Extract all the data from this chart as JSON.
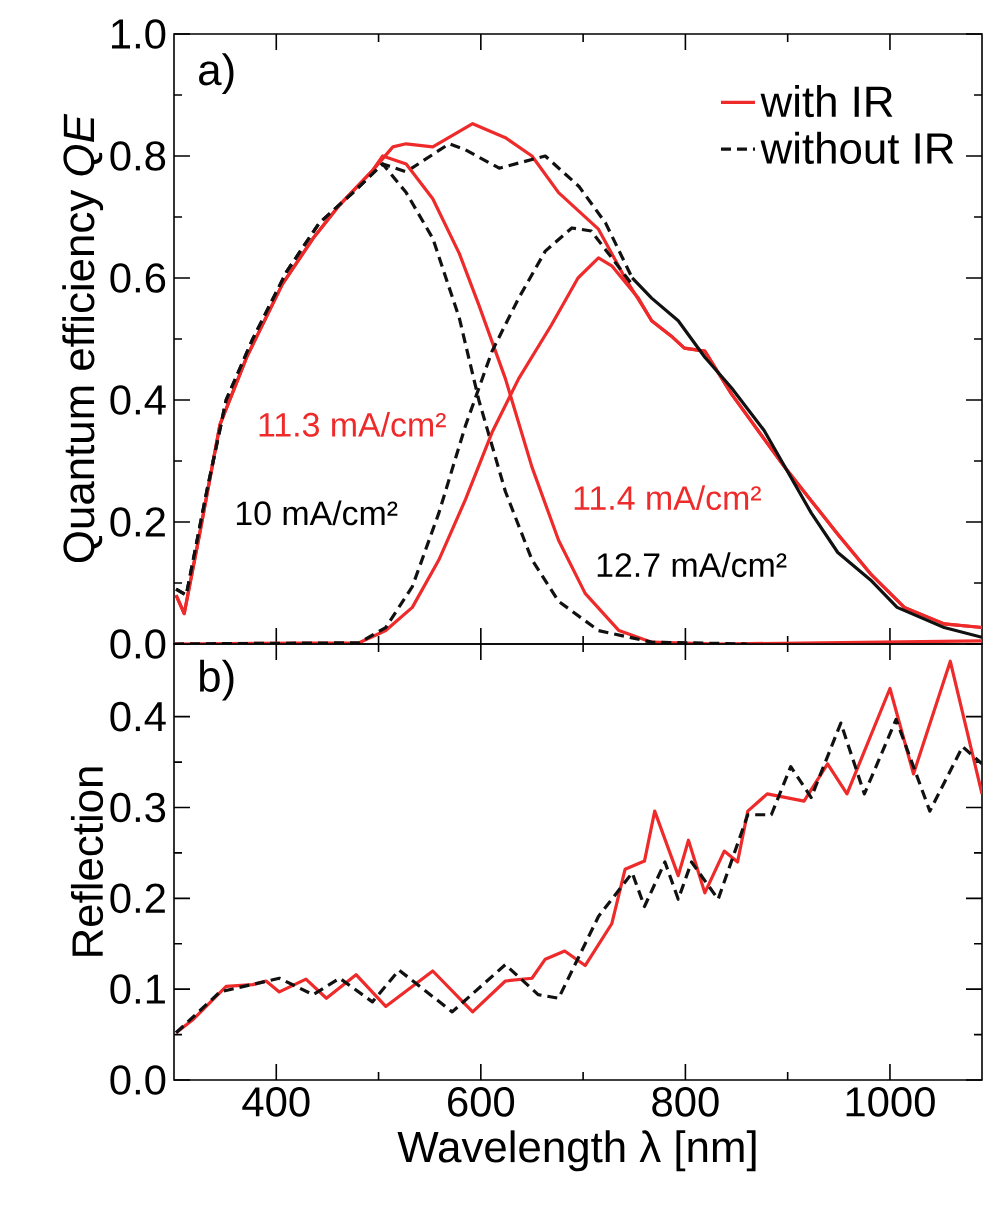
{
  "chart_data": [
    {
      "type": "line",
      "ylabel": "Quantum efficiency *QE*",
      "xlim": [
        300,
        1090
      ],
      "xticks": [
        400,
        600,
        800,
        1000
      ],
      "ylim": [
        0,
        1
      ],
      "yticks": [
        {
          "value": 0,
          "label": "0.0"
        },
        {
          "value": 0.2,
          "label": "0.2"
        },
        {
          "value": 0.4,
          "label": "0.4"
        },
        {
          "value": 0.6,
          "label": "0.6"
        },
        {
          "value": 0.8,
          "label": "0.8"
        },
        {
          "value": 1,
          "label": "1.0"
        }
      ],
      "tick_labels": "y",
      "legend": "top right",
      "grid": false,
      "annotations": [
        "a)",
        "11.3 mA/cm²",
        "10 mA/cm²",
        "11.4 mA/cm²",
        "12.7 mA/cm²"
      ],
      "series": [
        {
          "name": "with IR",
          "color": "#ee2a2a",
          "line_style": "solid",
          "x": [
            302,
            310,
            325,
            345,
            371,
            406,
            436,
            462,
            494,
            514,
            527,
            553,
            592,
            624,
            650,
            676,
            715,
            741,
            767,
            786,
            799,
            819,
            845,
            871,
            897,
            923,
            949,
            981,
            1014,
            1053,
            1090
          ],
          "values": [
            0.08,
            0.05,
            0.18,
            0.36,
            0.47,
            0.59,
            0.665,
            0.72,
            0.776,
            0.815,
            0.82,
            0.815,
            0.853,
            0.83,
            0.8,
            0.74,
            0.68,
            0.6,
            0.53,
            0.505,
            0.485,
            0.48,
            0.41,
            0.35,
            0.29,
            0.235,
            0.18,
            0.115,
            0.06,
            0.033,
            0.027
          ]
        },
        {
          "name": "without IR",
          "color": "#111111",
          "line_style": "dashed",
          "x": [
            302,
            312,
            332,
            351,
            377,
            410,
            442,
            475,
            504,
            527,
            569,
            585,
            618,
            663,
            696,
            722,
            748
          ],
          "values": [
            0.09,
            0.08,
            0.25,
            0.4,
            0.5,
            0.61,
            0.69,
            0.74,
            0.787,
            0.774,
            0.82,
            0.81,
            0.78,
            0.8,
            0.75,
            0.69,
            0.6
          ]
        },
        {
          "color": "#ee2a2a",
          "line_style": "solid",
          "x": [
            302,
            310,
            325,
            345,
            371,
            406,
            436,
            462,
            494,
            504,
            527,
            553,
            579,
            598,
            624,
            650,
            676,
            702,
            735,
            767,
            832,
            1090
          ],
          "values": [
            0.08,
            0.05,
            0.18,
            0.36,
            0.47,
            0.59,
            0.665,
            0.72,
            0.776,
            0.8,
            0.787,
            0.73,
            0.64,
            0.556,
            0.435,
            0.29,
            0.17,
            0.083,
            0.022,
            0.003,
            0.0,
            0.005
          ]
        },
        {
          "color": "#111111",
          "line_style": "dashed",
          "x": [
            302,
            312,
            332,
            351,
            377,
            410,
            442,
            475,
            504,
            527,
            553,
            579,
            598,
            624,
            650,
            676,
            715,
            767,
            860
          ],
          "values": [
            0.09,
            0.08,
            0.25,
            0.4,
            0.5,
            0.61,
            0.69,
            0.74,
            0.787,
            0.74,
            0.665,
            0.534,
            0.4,
            0.25,
            0.138,
            0.07,
            0.022,
            0.003,
            0.0
          ]
        },
        {
          "color": "#ee2a2a",
          "line_style": "solid",
          "x": [
            300,
            481,
            507,
            533,
            559,
            585,
            611,
            637,
            669,
            695,
            715,
            728,
            754,
            767,
            786,
            799,
            819,
            845,
            871,
            897,
            923,
            949,
            981,
            1014,
            1053,
            1090
          ],
          "values": [
            0.0,
            0.002,
            0.022,
            0.06,
            0.138,
            0.237,
            0.347,
            0.435,
            0.523,
            0.6,
            0.633,
            0.62,
            0.567,
            0.53,
            0.505,
            0.485,
            0.48,
            0.41,
            0.35,
            0.29,
            0.235,
            0.18,
            0.115,
            0.06,
            0.033,
            0.027
          ]
        },
        {
          "color": "#111111",
          "line_style": "dashed",
          "x": [
            300,
            481,
            507,
            533,
            559,
            585,
            611,
            637,
            663,
            689,
            708,
            728,
            748
          ],
          "values": [
            0.0,
            0.002,
            0.027,
            0.094,
            0.215,
            0.358,
            0.48,
            0.567,
            0.644,
            0.682,
            0.677,
            0.633,
            0.589
          ]
        },
        {
          "color": "#111111",
          "line_style": "solid",
          "x": [
            748,
            767,
            793,
            819,
            845,
            877,
            923,
            949,
            981,
            1007,
            1053,
            1090
          ],
          "values": [
            0.6,
            0.567,
            0.53,
            0.47,
            0.42,
            0.35,
            0.215,
            0.15,
            0.105,
            0.06,
            0.027,
            0.011
          ]
        }
      ]
    },
    {
      "type": "line",
      "xlabel": "Wavelength λ [nm]",
      "ylabel": "Reflection",
      "xlim": [
        300,
        1090
      ],
      "xticks": [
        400,
        600,
        800,
        1000
      ],
      "ylim": [
        0,
        0.48
      ],
      "yticks": [
        {
          "value": 0,
          "label": "0.0"
        },
        {
          "value": 0.1,
          "label": "0.1"
        },
        {
          "value": 0.2,
          "label": "0.2"
        },
        {
          "value": 0.3,
          "label": "0.3"
        },
        {
          "value": 0.4,
          "label": "0.4"
        }
      ],
      "grid": false,
      "annotations": [
        "b)"
      ],
      "series": [
        {
          "color": "#ee2a2a",
          "line_style": "solid",
          "x": [
            302,
            319,
            351,
            377,
            390,
            403,
            429,
            449,
            478,
            507,
            553,
            592,
            624,
            650,
            663,
            682,
            702,
            728,
            741,
            760,
            770,
            793,
            803,
            819,
            838,
            851,
            861,
            880,
            916,
            939,
            958,
            1000,
            1023,
            1059,
            1090
          ],
          "values": [
            0.052,
            0.067,
            0.103,
            0.105,
            0.109,
            0.097,
            0.111,
            0.09,
            0.116,
            0.081,
            0.12,
            0.075,
            0.109,
            0.112,
            0.133,
            0.142,
            0.126,
            0.172,
            0.232,
            0.241,
            0.296,
            0.225,
            0.264,
            0.206,
            0.252,
            0.24,
            0.296,
            0.315,
            0.307,
            0.348,
            0.315,
            0.431,
            0.337,
            0.461,
            0.315
          ]
        },
        {
          "color": "#111111",
          "line_style": "dashed",
          "x": [
            302,
            345,
            403,
            436,
            462,
            494,
            520,
            572,
            624,
            656,
            676,
            715,
            748,
            760,
            780,
            793,
            806,
            832,
            861,
            884,
            903,
            923,
            952,
            975,
            1006,
            1039,
            1071,
            1090
          ],
          "values": [
            0.052,
            0.097,
            0.112,
            0.094,
            0.112,
            0.086,
            0.121,
            0.075,
            0.127,
            0.094,
            0.09,
            0.18,
            0.228,
            0.191,
            0.24,
            0.199,
            0.24,
            0.199,
            0.292,
            0.292,
            0.345,
            0.311,
            0.393,
            0.315,
            0.397,
            0.296,
            0.367,
            0.348
          ]
        }
      ]
    }
  ]
}
